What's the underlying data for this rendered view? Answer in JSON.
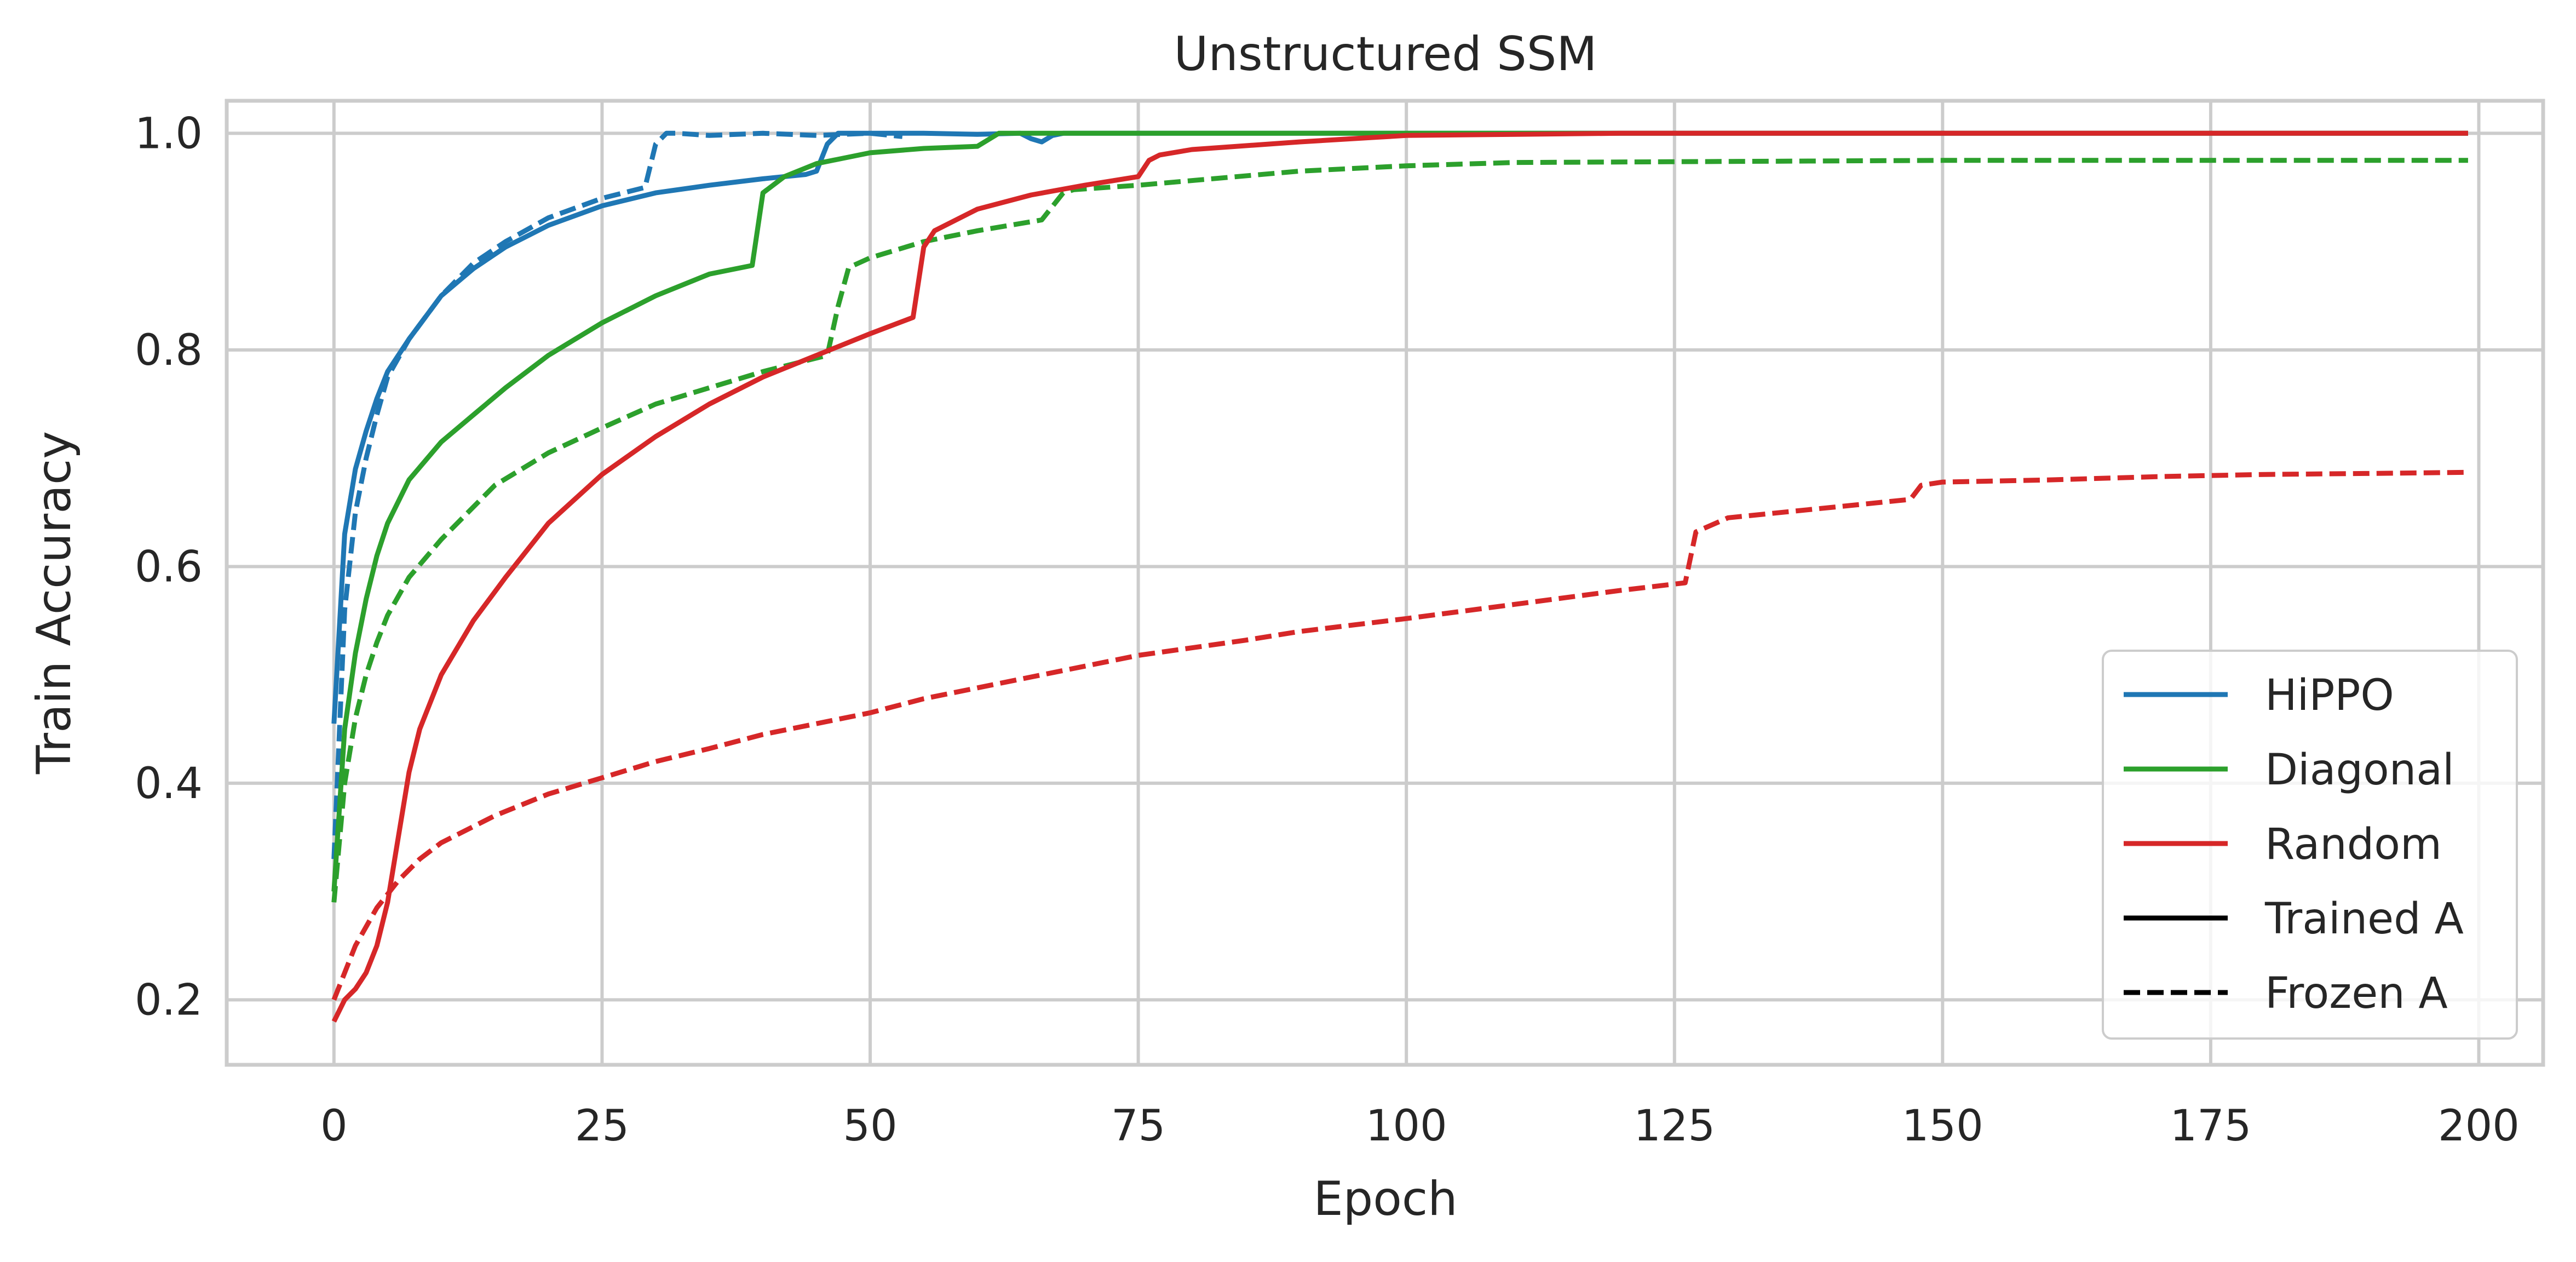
{
  "chart_data": {
    "type": "line",
    "title": "Unstructured SSM",
    "xlabel": "Epoch",
    "ylabel": "Train Accuracy",
    "xlim": [
      -10,
      206
    ],
    "ylim": [
      0.14,
      1.03
    ],
    "xticks": [
      0,
      25,
      50,
      75,
      100,
      125,
      150,
      175,
      200
    ],
    "xtick_labels": [
      "0",
      "25",
      "50",
      "75",
      "100",
      "125",
      "150",
      "175",
      "200"
    ],
    "yticks": [
      0.2,
      0.4,
      0.6,
      0.8,
      1.0
    ],
    "ytick_labels": [
      "0.2",
      "0.4",
      "0.6",
      "0.8",
      "1.0"
    ],
    "grid": true,
    "legend_position": "bottom-right",
    "legend": [
      {
        "label": "HiPPO",
        "color": "#1f77b4",
        "style": "solid"
      },
      {
        "label": "Diagonal",
        "color": "#2ca02c",
        "style": "solid"
      },
      {
        "label": "Random",
        "color": "#d62728",
        "style": "solid"
      },
      {
        "label": "Trained A",
        "color": "#000000",
        "style": "solid"
      },
      {
        "label": "Frozen A",
        "color": "#000000",
        "style": "dashed"
      }
    ],
    "series": [
      {
        "color": "#1f77b4",
        "style": "solid",
        "x": [
          0,
          1,
          2,
          3,
          4,
          5,
          7,
          10,
          13,
          16,
          20,
          25,
          30,
          35,
          40,
          44,
          45,
          46,
          47,
          50,
          55,
          60,
          64,
          65,
          66,
          67,
          68,
          70,
          80,
          100,
          150,
          199
        ],
        "y": [
          0.455,
          0.63,
          0.69,
          0.725,
          0.755,
          0.78,
          0.81,
          0.85,
          0.875,
          0.895,
          0.915,
          0.933,
          0.945,
          0.952,
          0.958,
          0.962,
          0.965,
          0.99,
          1.0,
          1.0,
          1.0,
          0.999,
          1.0,
          0.995,
          0.992,
          0.998,
          1.0,
          1.0,
          1.0,
          1.0,
          1.0,
          1.0
        ]
      },
      {
        "color": "#1f77b4",
        "style": "dashed",
        "x": [
          0,
          1,
          2,
          3,
          4,
          5,
          7,
          10,
          13,
          16,
          20,
          25,
          29,
          30,
          31,
          32,
          35,
          40,
          45,
          50,
          53
        ],
        "y": [
          0.33,
          0.56,
          0.65,
          0.7,
          0.74,
          0.775,
          0.81,
          0.85,
          0.88,
          0.9,
          0.922,
          0.94,
          0.95,
          0.99,
          1.0,
          1.0,
          0.998,
          1.0,
          0.998,
          1.0,
          0.997
        ]
      },
      {
        "color": "#2ca02c",
        "style": "solid",
        "x": [
          0,
          1,
          2,
          3,
          4,
          5,
          7,
          10,
          13,
          16,
          20,
          25,
          30,
          35,
          39,
          40,
          42,
          45,
          50,
          55,
          60,
          62,
          70,
          100,
          150,
          199
        ],
        "y": [
          0.3,
          0.45,
          0.52,
          0.57,
          0.61,
          0.64,
          0.68,
          0.715,
          0.74,
          0.765,
          0.795,
          0.825,
          0.85,
          0.87,
          0.878,
          0.945,
          0.96,
          0.972,
          0.982,
          0.986,
          0.988,
          1.0,
          1.0,
          1.0,
          1.0,
          1.0
        ]
      },
      {
        "color": "#2ca02c",
        "style": "dashed",
        "x": [
          0,
          1,
          2,
          3,
          4,
          5,
          7,
          10,
          15,
          20,
          25,
          30,
          35,
          40,
          46,
          47,
          48,
          50,
          55,
          60,
          66,
          68,
          69,
          75,
          90,
          100,
          110,
          150,
          199
        ],
        "y": [
          0.29,
          0.4,
          0.46,
          0.5,
          0.53,
          0.555,
          0.59,
          0.625,
          0.675,
          0.705,
          0.728,
          0.75,
          0.765,
          0.78,
          0.795,
          0.84,
          0.876,
          0.885,
          0.9,
          0.91,
          0.92,
          0.945,
          0.948,
          0.952,
          0.965,
          0.97,
          0.973,
          0.975,
          0.975
        ]
      },
      {
        "color": "#d62728",
        "style": "solid",
        "x": [
          0,
          1,
          2,
          3,
          4,
          5,
          6,
          7,
          8,
          10,
          13,
          16,
          20,
          25,
          30,
          35,
          40,
          45,
          50,
          54,
          55,
          56,
          60,
          65,
          70,
          75,
          76,
          77,
          80,
          90,
          100,
          120,
          150,
          199
        ],
        "y": [
          0.18,
          0.2,
          0.21,
          0.225,
          0.25,
          0.29,
          0.35,
          0.41,
          0.45,
          0.5,
          0.55,
          0.59,
          0.64,
          0.685,
          0.72,
          0.75,
          0.775,
          0.795,
          0.815,
          0.83,
          0.895,
          0.91,
          0.93,
          0.943,
          0.952,
          0.96,
          0.975,
          0.98,
          0.985,
          0.992,
          0.998,
          1.0,
          1.0,
          1.0
        ]
      },
      {
        "color": "#d62728",
        "style": "dashed",
        "x": [
          0,
          2,
          4,
          6,
          8,
          10,
          15,
          20,
          25,
          30,
          35,
          40,
          45,
          50,
          55,
          60,
          65,
          70,
          75,
          80,
          85,
          90,
          100,
          110,
          120,
          126,
          127,
          130,
          140,
          147,
          148,
          150,
          160,
          170,
          180,
          190,
          199
        ],
        "y": [
          0.2,
          0.25,
          0.285,
          0.31,
          0.33,
          0.345,
          0.37,
          0.39,
          0.405,
          0.42,
          0.432,
          0.445,
          0.455,
          0.465,
          0.478,
          0.488,
          0.498,
          0.508,
          0.518,
          0.525,
          0.532,
          0.54,
          0.552,
          0.565,
          0.578,
          0.585,
          0.632,
          0.645,
          0.655,
          0.662,
          0.675,
          0.678,
          0.68,
          0.683,
          0.685,
          0.686,
          0.687
        ]
      }
    ]
  }
}
